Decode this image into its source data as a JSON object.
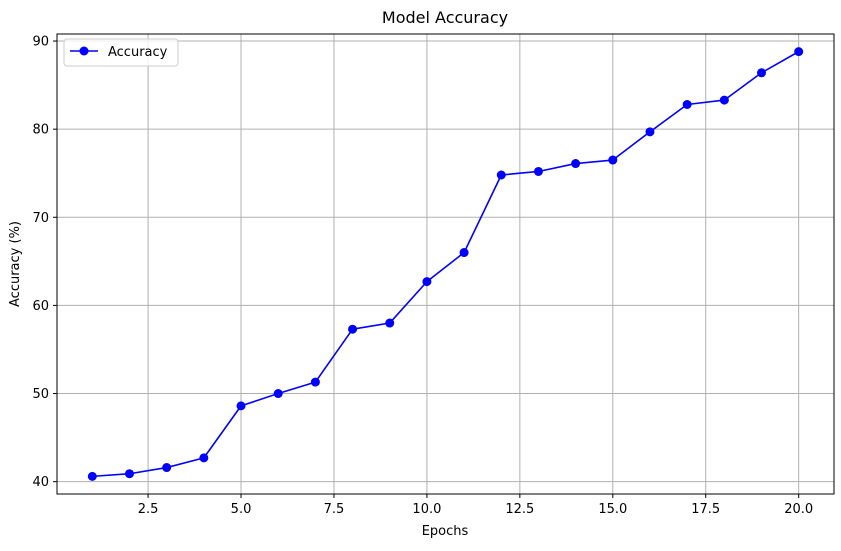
{
  "chart_data": {
    "type": "line",
    "title": "Model Accuracy",
    "xlabel": "Epochs",
    "ylabel": "Accuracy (%)",
    "xlim": [
      0.05,
      20.95
    ],
    "ylim": [
      38.6,
      90.8
    ],
    "x_ticks": [
      2.5,
      5.0,
      7.5,
      10.0,
      12.5,
      15.0,
      17.5,
      20.0
    ],
    "x_tick_labels": [
      "2.5",
      "5.0",
      "7.5",
      "10.0",
      "12.5",
      "15.0",
      "17.5",
      "20.0"
    ],
    "y_ticks": [
      40,
      50,
      60,
      70,
      80,
      90
    ],
    "y_tick_labels": [
      "40",
      "50",
      "60",
      "70",
      "80",
      "90"
    ],
    "grid": true,
    "legend_position": "top-left",
    "series": [
      {
        "name": "Accuracy",
        "color": "#0000ff",
        "marker": "circle",
        "x": [
          1,
          2,
          3,
          4,
          5,
          6,
          7,
          8,
          9,
          10,
          11,
          12,
          13,
          14,
          15,
          16,
          17,
          18,
          19,
          20
        ],
        "y": [
          40.6,
          40.9,
          41.6,
          42.7,
          48.6,
          50.0,
          51.3,
          57.3,
          58.0,
          62.7,
          66.0,
          74.8,
          75.2,
          76.1,
          76.5,
          79.7,
          82.8,
          83.3,
          86.4,
          88.8
        ]
      }
    ]
  }
}
